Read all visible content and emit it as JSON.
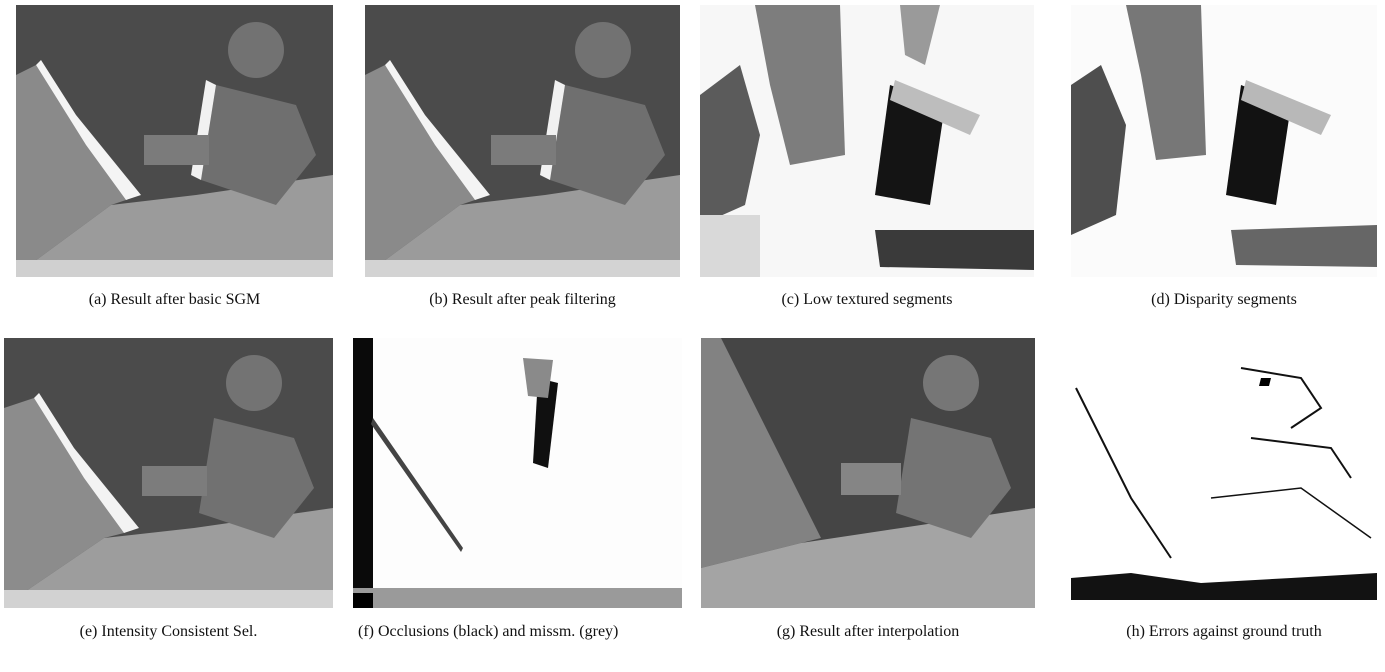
{
  "figure": {
    "panels": [
      {
        "id": "a",
        "caption": "(a) Result after basic SGM"
      },
      {
        "id": "b",
        "caption": "(b) Result after peak filtering"
      },
      {
        "id": "c",
        "caption": "(c) Low textured segments"
      },
      {
        "id": "d",
        "caption": "(d) Disparity segments"
      },
      {
        "id": "e",
        "caption": "(e) Intensity Consistent Sel."
      },
      {
        "id": "f",
        "caption": "(f) Occlusions (black) and missm. (grey)"
      },
      {
        "id": "g",
        "caption": "(g) Result after interpolation"
      },
      {
        "id": "h",
        "caption": "(h) Errors against ground truth"
      }
    ]
  }
}
